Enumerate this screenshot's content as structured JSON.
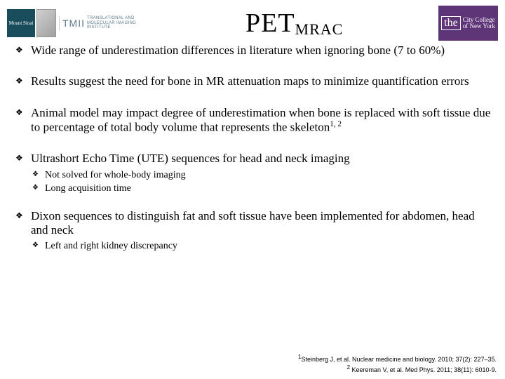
{
  "header": {
    "sinai_logo_text": "Mount Sinai",
    "tmii_acronym": "TMII",
    "tmii_full": "TRANSLATIONAL AND\nMOLECULAR IMAGING\nINSTITUTE",
    "title_main": "PET",
    "title_sub": "MRAC",
    "ccny_the": "the",
    "ccny_text": "City College\nof New York"
  },
  "bullets": [
    {
      "text": "Wide range of underestimation differences in literature when ignoring bone (7 to 60%)"
    },
    {
      "text": "Results suggest the need for bone in MR attenuation maps to minimize quantification errors"
    },
    {
      "text": "Animal model may impact degree of underestimation when bone is replaced with soft tissue due to percentage of total body volume that represents the skeleton",
      "sup": "1, 2"
    },
    {
      "text": "Ultrashort Echo Time (UTE) sequences for head and neck imaging",
      "sub": [
        "Not solved for whole-body imaging",
        "Long acquisition time"
      ]
    },
    {
      "text": "Dixon sequences to distinguish fat and soft tissue have been implemented for abdomen, head and neck",
      "sub": [
        "Left and right kidney discrepancy"
      ]
    }
  ],
  "citations": {
    "c1_num": "1",
    "c1_text": "Steinberg J, et al. Nuclear medicine and biology. 2010; 37(2): 227–35.",
    "c2_num": "2",
    "c2_text": " Keereman V, et al. Med Phys. 2011; 38(11): 6010-9."
  },
  "style": {
    "bg": "#ffffff",
    "text_color": "#000000",
    "bullet_glyph": "❖",
    "main_font_size_pt": 17,
    "sub_font_size_pt": 14,
    "title_font_size_pt": 38,
    "subtitle_font_size_pt": 22,
    "citation_font_size_pt": 9,
    "sinai_bg": "#1a4d5c",
    "tmii_color": "#5a7a8a",
    "ccny_bg": "#5e3577"
  }
}
